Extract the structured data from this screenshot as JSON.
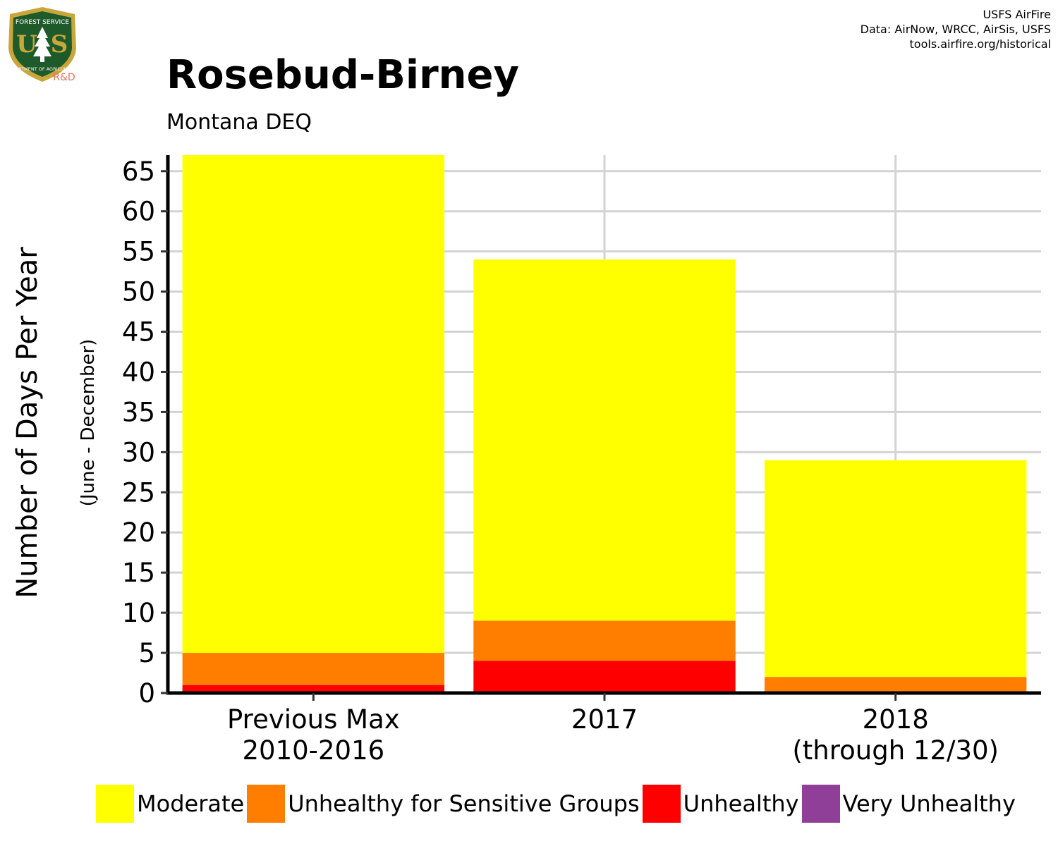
{
  "header": {
    "title": "Rosebud-Birney",
    "subtitle": "Montana DEQ"
  },
  "credits": {
    "line1": "USFS AirFire",
    "line2": "Data: AirNow, WRCC, AirSis, USFS",
    "line3": "tools.airfire.org/historical"
  },
  "logo": {
    "text_top": "FOREST SERVICE",
    "text_bottom": "DEPARTMENT OF AGRICULTURE",
    "letters": "U S",
    "tag": "R&D",
    "colors": {
      "shield": "#1f5a2b",
      "rim": "#c8a63a",
      "tag": "#e8705a"
    }
  },
  "chart_data": {
    "type": "bar",
    "stacked": true,
    "title": "Rosebud-Birney",
    "subtitle": "Montana DEQ",
    "ylabel": "Number of Days Per Year",
    "ylabel_sub": "(June - December)",
    "xlabel": "",
    "ylim": [
      0,
      67
    ],
    "yticks": [
      0,
      5,
      10,
      15,
      20,
      25,
      30,
      35,
      40,
      45,
      50,
      55,
      60,
      65
    ],
    "grid": true,
    "legend_position": "bottom",
    "categories": [
      [
        "Previous Max",
        "2010-2016"
      ],
      [
        "2017"
      ],
      [
        "2018",
        "(through 12/30)"
      ]
    ],
    "series": [
      {
        "name": "Very Unhealthy",
        "color": "#8f3f97",
        "values": [
          0,
          0,
          0
        ]
      },
      {
        "name": "Unhealthy",
        "color": "#ff0000",
        "values": [
          1,
          4,
          0
        ]
      },
      {
        "name": "Unhealthy for Sensitive Groups",
        "color": "#ff7e00",
        "values": [
          4,
          5,
          2
        ]
      },
      {
        "name": "Moderate",
        "color": "#ffff00",
        "values": [
          62,
          45,
          27
        ]
      }
    ],
    "legend_order": [
      "Moderate",
      "Unhealthy for Sensitive Groups",
      "Unhealthy",
      "Very Unhealthy"
    ]
  }
}
